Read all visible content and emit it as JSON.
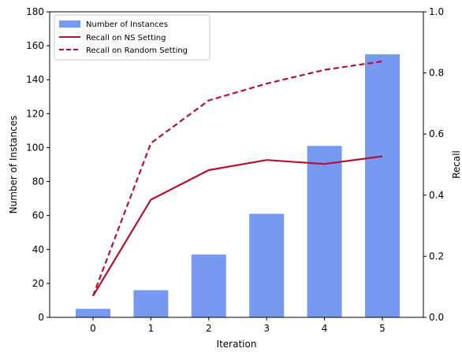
{
  "chart_data": {
    "type": "bar+line",
    "categories": [
      "0",
      "1",
      "2",
      "3",
      "4",
      "5"
    ],
    "xlabel": "Iteration",
    "ylabel_left": "Number of Instances",
    "ylabel_right": "Recall",
    "ylim_left": [
      0,
      180
    ],
    "ylim_right": [
      0.0,
      1.0
    ],
    "yticks_left": [
      "0",
      "20",
      "40",
      "60",
      "80",
      "100",
      "120",
      "140",
      "160",
      "180"
    ],
    "yticks_right": [
      "0.0",
      "0.2",
      "0.4",
      "0.6",
      "0.8",
      "1.0"
    ],
    "bar_series": {
      "name": "Number of Instances",
      "axis": "left",
      "color": "#7799f2",
      "values": [
        5,
        16,
        37,
        61,
        101,
        155
      ]
    },
    "line_series": [
      {
        "name": "Recall on NS Setting",
        "axis": "right",
        "color": "#b5122f",
        "style": "solid",
        "values": [
          0.07,
          0.385,
          0.482,
          0.515,
          0.502,
          0.527
        ]
      },
      {
        "name": "Recall on Random Setting",
        "axis": "right",
        "color": "#b5122f",
        "style": "dashed",
        "values": [
          0.07,
          0.57,
          0.71,
          0.765,
          0.81,
          0.838
        ]
      }
    ],
    "legend_placement": "top-left",
    "grid": false
  }
}
